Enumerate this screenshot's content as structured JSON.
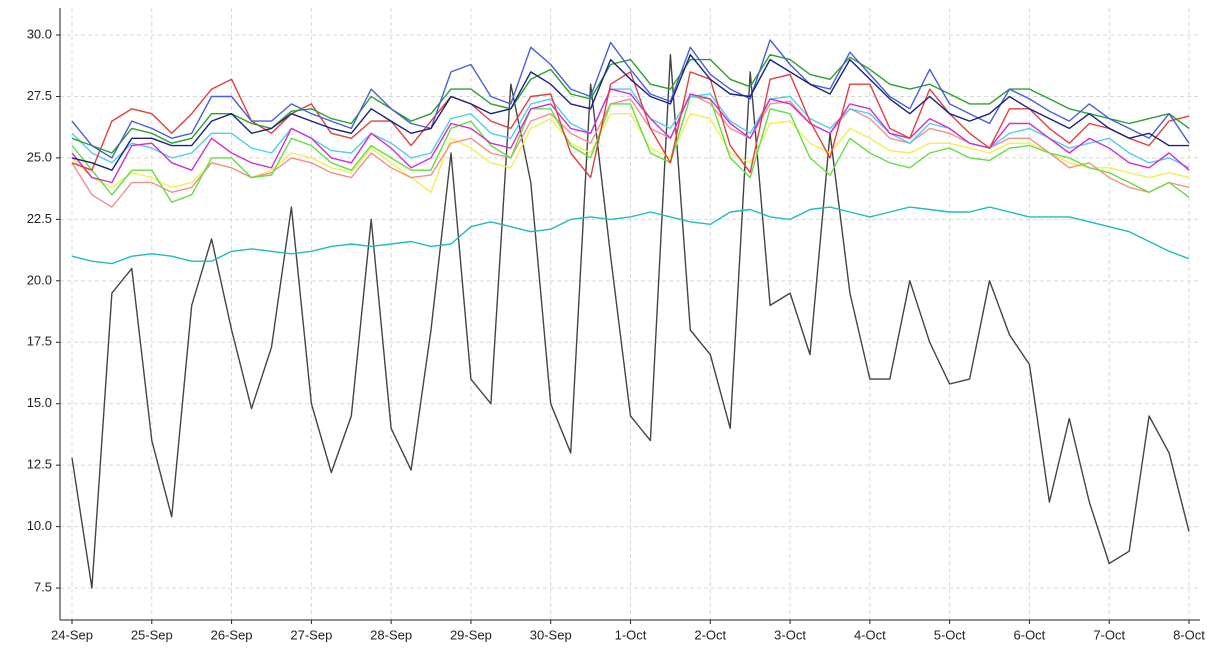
{
  "chart_data": {
    "type": "line",
    "categories": [
      "24-Sep",
      null,
      null,
      null,
      "25-Sep",
      null,
      null,
      null,
      "26-Sep",
      null,
      null,
      null,
      "27-Sep",
      null,
      null,
      null,
      "28-Sep",
      null,
      null,
      null,
      "29-Sep",
      null,
      null,
      null,
      "30-Sep",
      null,
      null,
      null,
      "1-Oct",
      null,
      null,
      null,
      "2-Oct",
      null,
      null,
      null,
      "3-Oct",
      null,
      null,
      null,
      "4-Oct",
      null,
      null,
      null,
      "5-Oct",
      null,
      null,
      null,
      "6-Oct",
      null,
      null,
      null,
      "7-Oct",
      null,
      null,
      null,
      "8-Oct"
    ],
    "ylim": [
      6.2,
      31.1
    ],
    "yticks": [
      7.5,
      {
        "value": 10,
        "label": "10.0"
      },
      12.5,
      {
        "value": 15,
        "label": "15.0"
      },
      17.5,
      {
        "value": 20,
        "label": "20.0"
      },
      22.5,
      {
        "value": 25,
        "label": "25.0"
      },
      27.5,
      {
        "value": 30,
        "label": "30.0"
      }
    ],
    "grid": true,
    "series": [
      {
        "color": "#444444",
        "values": [
          12.8,
          7.5,
          19.5,
          20.5,
          13.5,
          10.4,
          19,
          21.7,
          18,
          14.8,
          17.3,
          23,
          15,
          12.2,
          14.5,
          22.5,
          14,
          12.3,
          18,
          25.2,
          16,
          15,
          28,
          24,
          15,
          13,
          28,
          21,
          14.5,
          13.5,
          29.2,
          18,
          17,
          14,
          28.5,
          19,
          19.5,
          17,
          26,
          19.5,
          16,
          16,
          20,
          17.5,
          15.8,
          16,
          20,
          17.8,
          16.6,
          11,
          14.4,
          11,
          8.5,
          9,
          14.5,
          13,
          9.8
        ]
      },
      {
        "color": "#22bbbb",
        "values": [
          21,
          20.8,
          20.7,
          21,
          21.1,
          21,
          20.8,
          20.8,
          21.2,
          21.3,
          21.2,
          21.1,
          21.2,
          21.4,
          21.5,
          21.4,
          21.5,
          21.6,
          21.4,
          21.5,
          22.2,
          22.4,
          22.2,
          22,
          22.1,
          22.5,
          22.6,
          22.5,
          22.6,
          22.8,
          22.6,
          22.4,
          22.3,
          22.8,
          22.9,
          22.6,
          22.5,
          22.9,
          23,
          22.8,
          22.6,
          22.8,
          23,
          22.9,
          22.8,
          22.8,
          23,
          22.8,
          22.6,
          22.6,
          22.6,
          22.4,
          22.2,
          22,
          21.6,
          21.2,
          20.9
        ]
      },
      {
        "color": "#f0f050",
        "values": [
          25,
          24.2,
          23.8,
          24.4,
          24.2,
          23.8,
          24,
          24.8,
          24.6,
          24.2,
          24.5,
          25.2,
          25,
          24.6,
          24.4,
          25.4,
          24.8,
          24.2,
          23.6,
          25.8,
          25.4,
          24.8,
          24.6,
          26.2,
          26.6,
          25.6,
          25.2,
          26.8,
          26.8,
          25.4,
          25,
          26.8,
          26.6,
          25.2,
          24.8,
          26.4,
          26.5,
          25.6,
          25.2,
          26.2,
          25.8,
          25.3,
          25.2,
          25.6,
          25.6,
          25.4,
          25.2,
          25.6,
          25.6,
          25.2,
          24.8,
          24.6,
          24.6,
          24.4,
          24.2,
          24.4,
          24.2
        ]
      },
      {
        "color": "#f09090",
        "values": [
          24.8,
          23.5,
          23,
          24,
          24,
          23.6,
          23.8,
          24.8,
          24.6,
          24.2,
          24.4,
          25,
          24.8,
          24.4,
          24.2,
          25.2,
          24.6,
          24.2,
          24.3,
          25.6,
          25.8,
          25.2,
          25,
          26.5,
          26.8,
          26,
          25.6,
          27.2,
          27.4,
          26.2,
          25.8,
          27.6,
          27.2,
          26.2,
          25.8,
          27.2,
          27.3,
          26.4,
          26,
          27,
          26.6,
          25.8,
          25.6,
          26.2,
          26,
          25.6,
          25.4,
          25.8,
          25.8,
          25.2,
          24.6,
          24.8,
          24.2,
          23.8,
          23.6,
          24,
          23.8
        ]
      },
      {
        "color": "#66dd44",
        "values": [
          25.5,
          24.5,
          23.5,
          24.5,
          24.5,
          23.2,
          23.5,
          25,
          25,
          24.2,
          24.3,
          25.8,
          25.5,
          24.8,
          24.5,
          25.5,
          25,
          24.5,
          24.5,
          26.2,
          26.5,
          25.5,
          25,
          27,
          27,
          25.5,
          25,
          27.2,
          27.2,
          25.2,
          24.8,
          27.5,
          27.4,
          25,
          24.2,
          27,
          26.8,
          25,
          24.3,
          25.8,
          25.2,
          24.8,
          24.6,
          25.2,
          25.4,
          25,
          24.9,
          25.4,
          25.5,
          25.2,
          25,
          24.6,
          24.4,
          24,
          23.6,
          24,
          23.4
        ]
      },
      {
        "color": "#55ccee",
        "values": [
          26,
          25.2,
          24.8,
          25.6,
          25.4,
          25,
          25.2,
          26,
          26,
          25.4,
          25.2,
          26.2,
          25.8,
          25.3,
          25.2,
          26,
          25.6,
          25,
          25.2,
          26.6,
          26.8,
          26,
          25.8,
          27.2,
          27.4,
          26.4,
          26,
          27.8,
          27.8,
          26.6,
          26.2,
          27.5,
          27.6,
          26.5,
          26,
          27.4,
          27.5,
          26.6,
          26.2,
          27,
          26.8,
          26,
          25.6,
          26.4,
          26.2,
          25.6,
          25.4,
          26,
          26.2,
          25.8,
          25.4,
          25.6,
          25.8,
          25.2,
          24.8,
          25,
          24.6
        ]
      },
      {
        "color": "#d030d0",
        "values": [
          25.2,
          24.2,
          24,
          25.5,
          25.6,
          24.8,
          24.5,
          25.8,
          25.2,
          24.8,
          24.6,
          26.2,
          25.8,
          25,
          24.8,
          26,
          25.4,
          24.6,
          25,
          26.4,
          26.2,
          25.6,
          25.4,
          27,
          27.2,
          26.2,
          26,
          27.8,
          27.6,
          26.6,
          25.8,
          27.6,
          27.4,
          26.4,
          25.8,
          27.4,
          27.2,
          26.4,
          26,
          27.2,
          27,
          26,
          25.8,
          26.6,
          26.2,
          25.6,
          25.4,
          26.4,
          26.4,
          25.8,
          25.2,
          25.8,
          25.4,
          24.8,
          24.6,
          25.2,
          24.5
        ]
      },
      {
        "color": "#e04040",
        "values": [
          24.8,
          24.5,
          26.5,
          27,
          26.8,
          26,
          26.8,
          27.8,
          28.2,
          26.5,
          26,
          26.8,
          27.2,
          26,
          25.8,
          26.5,
          26.5,
          25.5,
          26.5,
          27.5,
          27.2,
          26.5,
          26.2,
          27.5,
          27.6,
          25.2,
          24.2,
          28,
          28.5,
          26.2,
          24.8,
          28.5,
          28.2,
          25.5,
          24.4,
          28.2,
          28.4,
          26.5,
          25,
          28,
          28,
          26.2,
          25.8,
          27.8,
          26.8,
          26,
          25.4,
          27,
          27,
          26.2,
          25.6,
          26.4,
          26.2,
          25.8,
          25.5,
          26.5,
          26.7
        ]
      },
      {
        "color": "#2ca02c",
        "values": [
          25.8,
          25.5,
          25.2,
          26.2,
          26,
          25.6,
          25.8,
          26.8,
          26.8,
          26.4,
          26.2,
          26.9,
          27,
          26.6,
          26.4,
          27.5,
          27,
          26.5,
          26.8,
          27.8,
          27.8,
          27.2,
          27,
          28.2,
          28.6,
          27.6,
          27.4,
          28.8,
          29,
          28,
          27.8,
          29,
          29,
          28.2,
          27.9,
          29.2,
          29,
          28.4,
          28.2,
          29.1,
          28.6,
          28,
          27.8,
          28,
          27.6,
          27.2,
          27.2,
          27.8,
          27.8,
          27.4,
          27,
          26.8,
          26.6,
          26.4,
          26.6,
          26.8,
          26.2
        ]
      },
      {
        "color": "#4a5fd6",
        "values": [
          26.5,
          25.5,
          25,
          26.5,
          26.2,
          25.8,
          26,
          27.5,
          27.5,
          26.5,
          26.5,
          27.2,
          26.8,
          26.5,
          26.2,
          27.8,
          27,
          26.4,
          26.2,
          28.5,
          28.8,
          27.5,
          27.2,
          29.5,
          28.8,
          27.8,
          27.5,
          29.7,
          28.6,
          27.6,
          27.3,
          29.5,
          28.4,
          27.8,
          27.4,
          29.8,
          28.8,
          28,
          27.8,
          29.3,
          28.4,
          27.5,
          27,
          28.6,
          27.2,
          26.8,
          26.4,
          27.8,
          27.4,
          26.9,
          26.5,
          27.2,
          26.6,
          26.2,
          25.8,
          26.8,
          25.6
        ]
      },
      {
        "color": "#1a237e",
        "values": [
          25,
          24.8,
          24.5,
          25.8,
          25.8,
          25.5,
          25.5,
          26.5,
          26.8,
          26,
          26.2,
          26.8,
          26.5,
          26.2,
          26,
          27,
          26.5,
          26,
          26.2,
          27.5,
          27.2,
          26.8,
          27,
          28.5,
          28,
          27.2,
          27,
          29,
          28.2,
          27.5,
          27.2,
          29.2,
          28.2,
          27.6,
          27.5,
          29,
          28.5,
          28,
          27.6,
          29,
          28.2,
          27.4,
          26.8,
          27.5,
          26.8,
          26.5,
          26.8,
          27.5,
          27,
          26.6,
          26.2,
          26.8,
          26.2,
          25.8,
          26,
          25.5,
          25.5
        ]
      }
    ]
  }
}
